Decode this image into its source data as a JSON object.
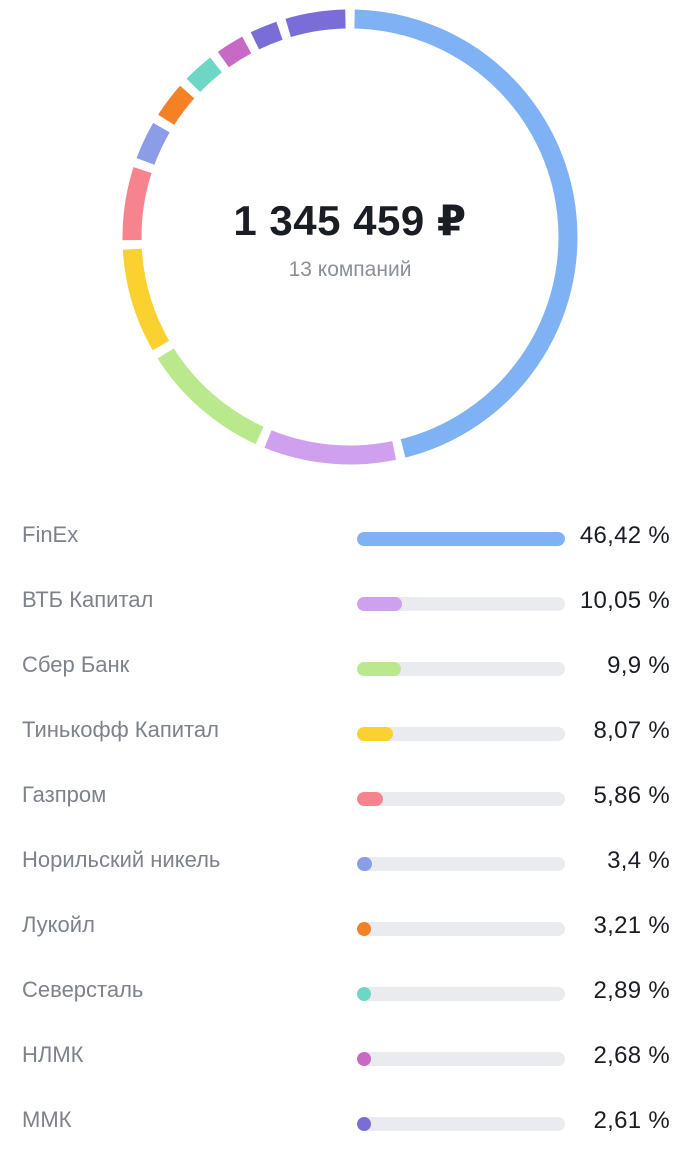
{
  "summary": {
    "total": "1 345 459 ₽",
    "companies": "13 компаний"
  },
  "chart_data": {
    "type": "pie",
    "unit": "%",
    "categories": [
      "FinEx",
      "ВТБ Капитал",
      "Сбер Банк",
      "Тинькофф Капитал",
      "Газпром",
      "Норильский никель",
      "Лукойл",
      "Северсталь",
      "НЛМК",
      "ММК"
    ],
    "values": [
      46.42,
      10.05,
      9.9,
      8.07,
      5.86,
      3.4,
      3.21,
      2.89,
      2.68,
      2.61
    ],
    "value_labels": [
      "46,42 %",
      "10,05 %",
      "9,9 %",
      "8,07 %",
      "5,86 %",
      "3,4 %",
      "3,21 %",
      "2,89 %",
      "2,68 %",
      "2,61 %"
    ],
    "colors": [
      "#7fb2f5",
      "#cfa0ee",
      "#b9e98c",
      "#fad12e",
      "#f7838f",
      "#8c9de8",
      "#f48126",
      "#6dd6c4",
      "#c76ac6",
      "#7b6dd8"
    ],
    "other_segments": [
      {
        "value": 4.91,
        "color": "#7b6dd8"
      }
    ]
  }
}
